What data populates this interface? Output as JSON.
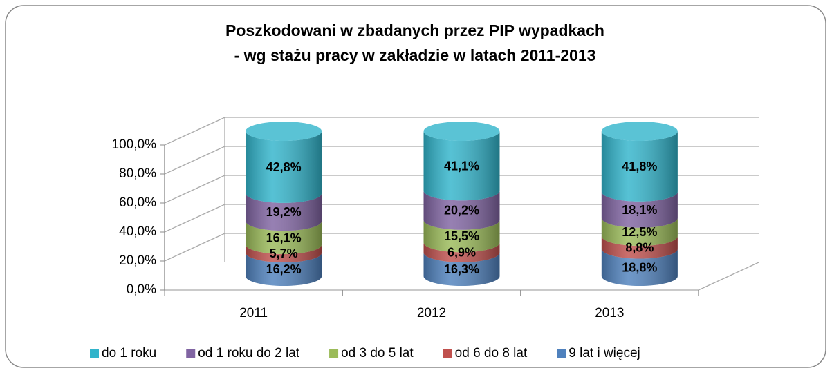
{
  "chart_data": {
    "type": "stacked_cylinder",
    "title": [
      "Poszkodowani w zbadanych przez PIP wypadkach",
      "- wg stażu pracy w zakładzie w latach 2011-2013"
    ],
    "categories": [
      "2011",
      "2012",
      "2013"
    ],
    "series": [
      {
        "name": "do 1 roku",
        "color": "#31b4cb",
        "values": [
          42.8,
          41.1,
          41.8
        ],
        "value_labels": [
          "42,8%",
          "41,1%",
          "41,8%"
        ]
      },
      {
        "name": "od 1 roku do 2 lat",
        "color": "#8064a2",
        "values": [
          19.2,
          20.2,
          18.1
        ],
        "value_labels": [
          "19,2%",
          "20,2%",
          "18,1%"
        ]
      },
      {
        "name": "od 3 do 5 lat",
        "color": "#9bbb59",
        "values": [
          16.1,
          15.5,
          12.5
        ],
        "value_labels": [
          "16,1%",
          "15,5%",
          "12,5%"
        ]
      },
      {
        "name": "od 6 do 8 lat",
        "color": "#c0504d",
        "values": [
          5.7,
          6.9,
          8.8
        ],
        "value_labels": [
          "5,7%",
          "6,9%",
          "8,8%"
        ]
      },
      {
        "name": "9 lat i więcej",
        "color": "#4f81bd",
        "values": [
          16.2,
          16.3,
          18.8
        ],
        "value_labels": [
          "16,2%",
          "16,3%",
          "18,8%"
        ]
      }
    ],
    "ylim": [
      0,
      100
    ],
    "yticks": [
      {
        "value": 0,
        "label": "0,0%"
      },
      {
        "value": 20,
        "label": "20,0%"
      },
      {
        "value": 40,
        "label": "40,0%"
      },
      {
        "value": 60,
        "label": "60,0%"
      },
      {
        "value": 80,
        "label": "80,0%"
      },
      {
        "value": 100,
        "label": "100,0%"
      }
    ],
    "grid": true,
    "legend": "bottom"
  }
}
